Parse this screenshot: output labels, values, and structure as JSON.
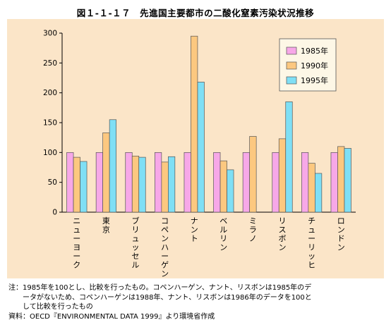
{
  "title": "図１-１-１７　先進国主要都市の二酸化窒素汚染状況推移",
  "chart_data": {
    "type": "bar",
    "title": "図１-１-１７　先進国主要都市の二酸化窒素汚染状況推移",
    "categories": [
      "ニューヨーク",
      "東京",
      "ブリュッセル",
      "コペンハーゲン",
      "ナント",
      "ベルリン",
      "ミラノ",
      "リスボン",
      "チューリッヒ",
      "ロンドン"
    ],
    "series": [
      {
        "name": "1985年",
        "color": "#f7a8e8",
        "values": [
          100,
          100,
          100,
          100,
          100,
          100,
          100,
          100,
          100,
          100
        ]
      },
      {
        "name": "1990年",
        "color": "#fcc880",
        "values": [
          92,
          133,
          94,
          84,
          295,
          86,
          127,
          123,
          82,
          110
        ]
      },
      {
        "name": "1995年",
        "color": "#7fdff5",
        "values": [
          85,
          155,
          92,
          93,
          218,
          71,
          null,
          185,
          65,
          107
        ]
      }
    ],
    "yticks": [
      0,
      50,
      100,
      150,
      200,
      250,
      300
    ],
    "ylim": [
      0,
      300
    ],
    "legend": "top-right",
    "grid": false
  },
  "notes": [
    "注：1985年を100とし、比較を行ったもの。コペンハーゲン、ナント、リスボンは1985年のデ",
    "　　ータがないため、コペンハーゲンは1988年、ナント、リスボンは1986年のデータを100と",
    "　　して比較を行ったもの",
    "資料：OECD『ENVIRONMENTAL DATA 1999』より環境省作成"
  ]
}
